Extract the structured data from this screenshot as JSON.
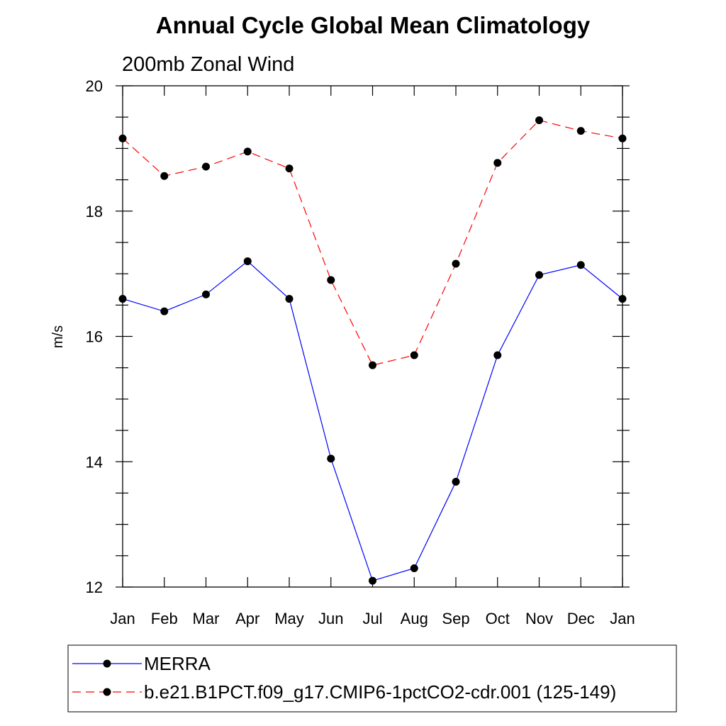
{
  "chart_data": {
    "type": "line",
    "title": "Annual Cycle Global Mean Climatology",
    "subtitle": "200mb Zonal Wind",
    "xlabel": "",
    "ylabel": "m/s",
    "categories": [
      "Jan",
      "Feb",
      "Mar",
      "Apr",
      "May",
      "Jun",
      "Jul",
      "Aug",
      "Sep",
      "Oct",
      "Nov",
      "Dec",
      "Jan"
    ],
    "ylim": [
      12,
      20
    ],
    "yticks": [
      12,
      14,
      16,
      18,
      20
    ],
    "grid": false,
    "legend_position": "bottom",
    "series": [
      {
        "name": "MERRA",
        "color": "#0000ff",
        "dash": "solid",
        "values": [
          16.6,
          16.4,
          16.67,
          17.2,
          16.6,
          14.05,
          12.1,
          12.3,
          13.68,
          15.7,
          16.98,
          17.14,
          16.6
        ]
      },
      {
        "name": "b.e21.B1PCT.f09_g17.CMIP6-1pctCO2-cdr.001 (125-149)",
        "color": "#ff0000",
        "dash": "dashed",
        "values": [
          19.16,
          18.56,
          18.71,
          18.95,
          18.68,
          16.9,
          15.54,
          15.7,
          17.16,
          18.77,
          19.45,
          19.28,
          19.16
        ]
      }
    ]
  }
}
